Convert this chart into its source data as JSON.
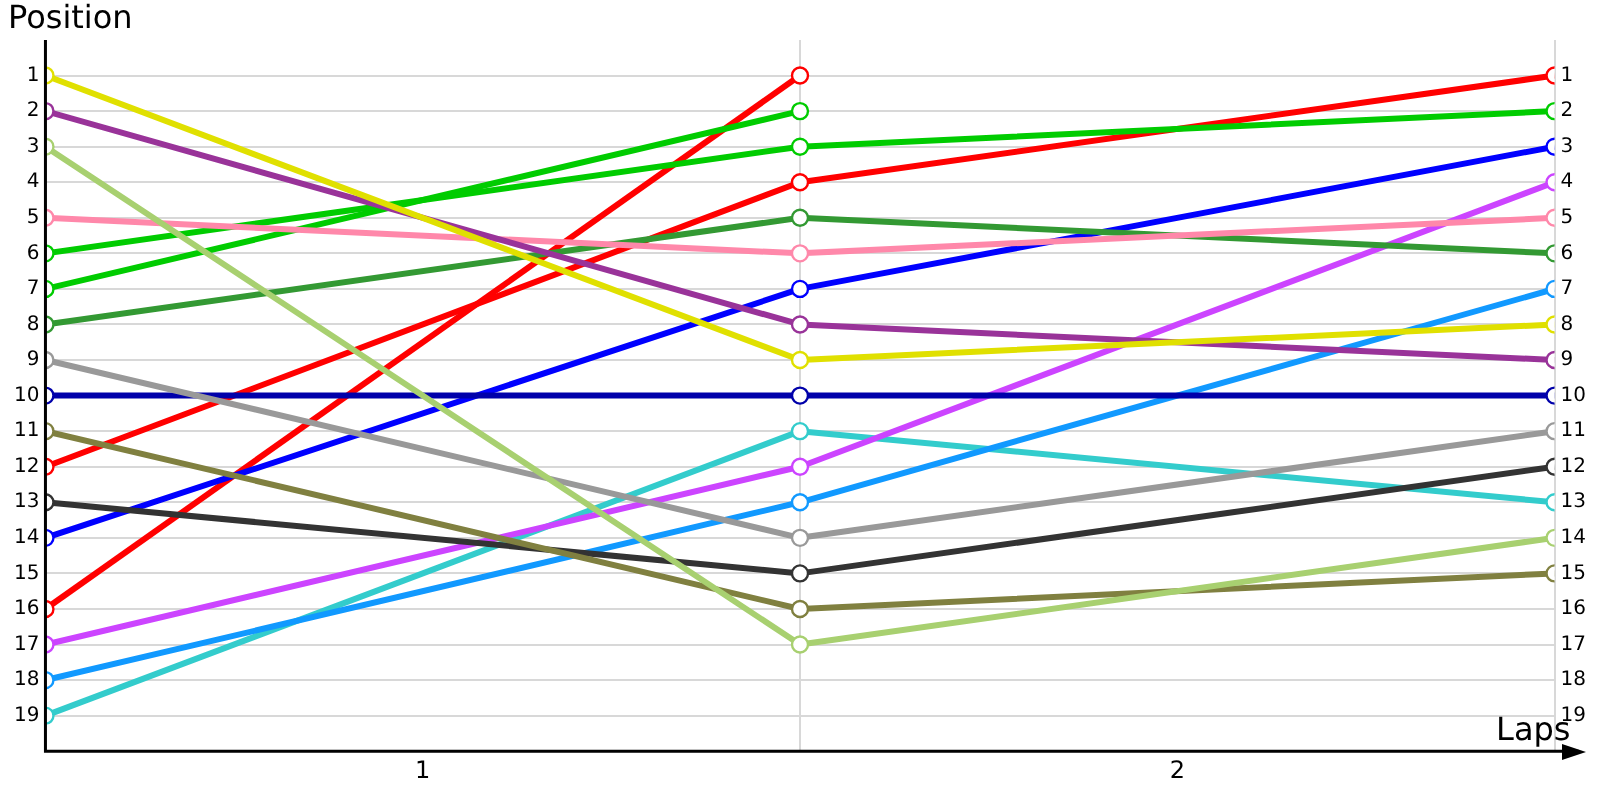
{
  "chart_data": {
    "type": "line",
    "ylabel": "Position",
    "xlabel": "Laps",
    "x": [
      0,
      1,
      2
    ],
    "xlim": [
      0,
      2
    ],
    "xticks": [
      {
        "value": 0,
        "label": null
      },
      {
        "value": 0.5,
        "label": "1"
      },
      {
        "value": 1,
        "label": null
      },
      {
        "value": 1.5,
        "label": "2"
      },
      {
        "value": 2,
        "label": null
      }
    ],
    "ylim": [
      20,
      0
    ],
    "yticks": [
      1,
      2,
      3,
      4,
      5,
      6,
      7,
      8,
      9,
      10,
      11,
      12,
      13,
      14,
      15,
      16,
      17,
      18,
      19
    ],
    "y2lim": [
      20,
      0
    ],
    "y2ticks": [
      1,
      2,
      3,
      4,
      5,
      6,
      7,
      8,
      9,
      10,
      11,
      12,
      13,
      14,
      15,
      16,
      17,
      18,
      19
    ],
    "grid": true,
    "legend": false,
    "marker": "circle",
    "line_style": "solid",
    "series": [
      {
        "color": "#e0e000",
        "values": [
          1,
          9,
          8
        ]
      },
      {
        "color": "#993399",
        "values": [
          2,
          8,
          9
        ]
      },
      {
        "color": "#a8d070",
        "values": [
          3,
          17,
          14
        ]
      },
      {
        "color": "#ff88aa",
        "values": [
          5,
          6,
          5
        ]
      },
      {
        "color": "#00cc00",
        "values": [
          6,
          3,
          2
        ]
      },
      {
        "color": "#00cc00",
        "values": [
          7,
          2,
          null
        ]
      },
      {
        "color": "#339933",
        "values": [
          8,
          5,
          6
        ]
      },
      {
        "color": "#999999",
        "values": [
          9,
          14,
          11
        ]
      },
      {
        "color": "#0000aa",
        "values": [
          10,
          10,
          10
        ]
      },
      {
        "color": "#808040",
        "values": [
          11,
          16,
          15
        ]
      },
      {
        "color": "#ff0000",
        "values": [
          12,
          4,
          1
        ]
      },
      {
        "color": "#333333",
        "values": [
          13,
          15,
          12
        ]
      },
      {
        "color": "#0000ff",
        "values": [
          14,
          7,
          3
        ]
      },
      {
        "color": "#ff0000",
        "values": [
          16,
          1,
          null
        ]
      },
      {
        "color": "#cc44ff",
        "values": [
          17,
          12,
          4
        ]
      },
      {
        "color": "#1199ff",
        "values": [
          18,
          13,
          7
        ]
      },
      {
        "color": "#33cccc",
        "values": [
          19,
          11,
          13
        ]
      }
    ]
  }
}
